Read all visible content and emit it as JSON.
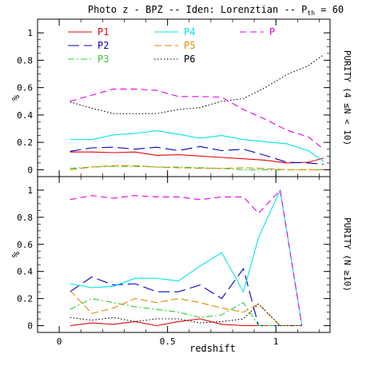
{
  "title": {
    "main": "Photo z - BPZ -- Iden: Lorenztian -- P",
    "sub": "th",
    "tail": " = 60"
  },
  "xlabel": "redshift",
  "series_style": [
    {
      "name": "P1",
      "color": "#e8000b",
      "dash": ""
    },
    {
      "name": "P2",
      "color": "#0000c8",
      "dash": "14 6"
    },
    {
      "name": "P3",
      "color": "#2ecc2e",
      "dash": "8 3 2 3"
    },
    {
      "name": "P4",
      "color": "#00e5e5",
      "dash": ""
    },
    {
      "name": "P5",
      "color": "#e08a00",
      "dash": "9 4"
    },
    {
      "name": "P6",
      "color": "#000000",
      "dash": "1.5 2.5"
    },
    {
      "name": "P",
      "color": "#e600e6",
      "dash": "8 5"
    }
  ],
  "chart_data": [
    {
      "type": "line",
      "ylabel": "%",
      "side_label": "PURITY (4 ≤N < 10)",
      "xlim": [
        -0.1,
        1.25
      ],
      "ylim": [
        -0.05,
        1.1
      ],
      "xticks": [
        0,
        0.5,
        1
      ],
      "yticks": [
        0,
        0.2,
        0.4,
        0.6,
        0.8,
        1
      ],
      "x": [
        0.05,
        0.15,
        0.25,
        0.35,
        0.45,
        0.55,
        0.65,
        0.75,
        0.85,
        0.95,
        1.05,
        1.15,
        1.22
      ],
      "series": [
        {
          "name": "P1",
          "values": [
            0.13,
            0.13,
            0.125,
            0.13,
            0.105,
            0.11,
            0.1,
            0.09,
            0.08,
            0.07,
            0.05,
            0.055,
            0.085
          ]
        },
        {
          "name": "P2",
          "values": [
            0.135,
            0.16,
            0.165,
            0.15,
            0.165,
            0.14,
            0.17,
            0.14,
            0.15,
            0.105,
            0.055,
            0.05,
            0.04
          ]
        },
        {
          "name": "P3",
          "values": [
            0.01,
            0.02,
            0.025,
            0.025,
            0.02,
            0.02,
            0.015,
            0.01,
            0.0,
            0.0,
            0.0,
            0.0,
            0.0
          ]
        },
        {
          "name": "P4",
          "values": [
            0.22,
            0.22,
            0.255,
            0.265,
            0.285,
            0.26,
            0.23,
            0.25,
            0.22,
            0.205,
            0.19,
            0.14,
            0.06
          ]
        },
        {
          "name": "P5",
          "values": [
            0.0,
            0.02,
            0.03,
            0.03,
            0.02,
            0.015,
            0.01,
            0.01,
            0.015,
            0.01,
            0.0,
            0.0,
            0.0
          ]
        },
        {
          "name": "P6",
          "values": [
            0.495,
            0.45,
            0.41,
            0.41,
            0.41,
            0.44,
            0.455,
            0.5,
            0.52,
            0.6,
            0.695,
            0.76,
            0.84
          ]
        },
        {
          "name": "P",
          "values": [
            0.5,
            0.545,
            0.59,
            0.59,
            0.58,
            0.535,
            0.535,
            0.53,
            0.44,
            0.37,
            0.29,
            0.24,
            0.15
          ]
        }
      ]
    },
    {
      "type": "line",
      "ylabel": "%",
      "side_label": "PURITY (N ≥10)",
      "xlim": [
        -0.1,
        1.25
      ],
      "ylim": [
        -0.05,
        1.1
      ],
      "xticks": [
        0,
        0.5,
        1
      ],
      "yticks": [
        0,
        0.2,
        0.4,
        0.6,
        0.8,
        1
      ],
      "x": [
        0.05,
        0.15,
        0.25,
        0.35,
        0.45,
        0.55,
        0.65,
        0.75,
        0.85,
        0.92,
        1.02,
        1.12
      ],
      "series": [
        {
          "name": "P1",
          "values": [
            0.0,
            0.02,
            0.01,
            0.03,
            0.0,
            0.03,
            0.05,
            0.01,
            0.0,
            0.0,
            0.0,
            0.0
          ]
        },
        {
          "name": "P2",
          "values": [
            0.25,
            0.36,
            0.3,
            0.31,
            0.25,
            0.25,
            0.3,
            0.2,
            0.42,
            0.0,
            0.0,
            0.0
          ]
        },
        {
          "name": "P3",
          "values": [
            0.12,
            0.2,
            0.17,
            0.14,
            0.12,
            0.1,
            0.06,
            0.08,
            0.17,
            0.0,
            0.0,
            0.0
          ]
        },
        {
          "name": "P4",
          "values": [
            0.31,
            0.28,
            0.29,
            0.35,
            0.35,
            0.33,
            0.44,
            0.54,
            0.25,
            0.65,
            1.0,
            0.0
          ]
        },
        {
          "name": "P5",
          "values": [
            0.26,
            0.09,
            0.13,
            0.2,
            0.17,
            0.2,
            0.17,
            0.13,
            0.1,
            0.16,
            0.0,
            0.0
          ]
        },
        {
          "name": "P6",
          "values": [
            0.06,
            0.04,
            0.06,
            0.03,
            0.05,
            0.05,
            0.02,
            0.03,
            0.05,
            0.16,
            0.0,
            0.0
          ]
        },
        {
          "name": "P",
          "values": [
            0.93,
            0.96,
            0.94,
            0.96,
            0.95,
            0.95,
            0.93,
            0.95,
            0.95,
            0.83,
            1.0,
            0.0
          ]
        }
      ]
    }
  ]
}
